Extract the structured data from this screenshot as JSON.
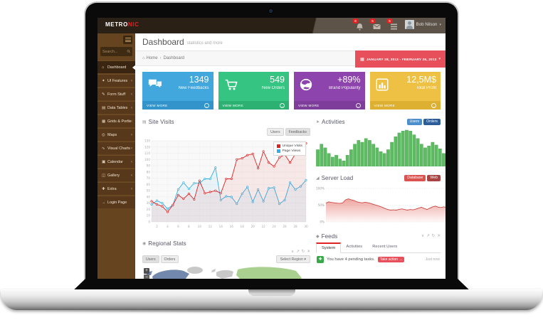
{
  "brand": {
    "logo_primary": "METRO",
    "logo_accent": "NIC"
  },
  "header": {
    "notifications": [
      {
        "icon": "bell-icon",
        "badge": "6"
      },
      {
        "icon": "envelope-icon",
        "badge": "5"
      },
      {
        "icon": "tasks-icon",
        "badge": "5"
      }
    ],
    "user": {
      "name": "Bob Nilson"
    }
  },
  "sidebar": {
    "search_placeholder": "Search...",
    "items": [
      {
        "label": "Dashboard",
        "icon": "home-icon",
        "glyph": "home",
        "active": true,
        "arrow": false
      },
      {
        "label": "UI Features",
        "icon": "star-icon",
        "glyph": "star",
        "active": false,
        "arrow": true
      },
      {
        "label": "Form Stuff",
        "icon": "pencil-icon",
        "glyph": "pencil",
        "active": false,
        "arrow": true
      },
      {
        "label": "Data Tables",
        "icon": "table-icon",
        "glyph": "table",
        "active": false,
        "arrow": true
      },
      {
        "label": "Grids & Portlets",
        "icon": "grid-icon",
        "glyph": "grid",
        "active": false,
        "arrow": true
      },
      {
        "label": "Maps",
        "icon": "map-pin-icon",
        "glyph": "pin",
        "active": false,
        "arrow": true
      },
      {
        "label": "Visual Charts",
        "icon": "chart-icon",
        "glyph": "wave",
        "active": false,
        "arrow": true
      },
      {
        "label": "Calendar",
        "icon": "calendar-icon",
        "glyph": "calendar",
        "active": false,
        "arrow": true
      },
      {
        "label": "Gallery",
        "icon": "gallery-icon",
        "glyph": "gallery",
        "active": false,
        "arrow": true
      },
      {
        "label": "Extra",
        "icon": "plus-icon",
        "glyph": "plus",
        "active": false,
        "arrow": true
      },
      {
        "label": "Login Page",
        "icon": "login-icon",
        "glyph": "arrow-right",
        "active": false,
        "arrow": false
      }
    ]
  },
  "page": {
    "title": "Dashboard",
    "subtitle": "statistics and more"
  },
  "breadcrumb": {
    "home": "Home",
    "current": "Dashboard"
  },
  "daterange": {
    "label": "JANUARY 28, 2013 - FEBRUARY 26, 2013",
    "color": "#e7505a"
  },
  "tiles": [
    {
      "value": "1349",
      "label": "New Feedbacks",
      "footer": "VIEW MORE",
      "color": "#41a7dd",
      "footer_color": "#3294cb",
      "icon": "comments-icon"
    },
    {
      "value": "549",
      "label": "New Orders",
      "footer": "VIEW MORE",
      "color": "#35c481",
      "footer_color": "#2db173",
      "icon": "cart-icon"
    },
    {
      "value": "+89%",
      "label": "Brand Popularity",
      "footer": "VIEW MORE",
      "color": "#8e44ad",
      "footer_color": "#7e3d9b",
      "icon": "globe-icon"
    },
    {
      "value": "12,5M$",
      "label": "Total Profit",
      "footer": "VIEW MORE",
      "color": "#eec144",
      "footer_color": "#ddb032",
      "icon": "bar-chart-icon"
    }
  ],
  "charts": {
    "site_visits": {
      "title": "Site Visits",
      "buttons": [
        "Users",
        "Feedbacks"
      ],
      "type": "line",
      "ylim": [
        0,
        130
      ],
      "y_ticks": [
        0,
        10,
        20,
        30,
        40,
        50,
        60,
        70,
        80,
        90,
        100,
        110,
        120,
        130
      ],
      "x_ticks": [
        2,
        4,
        6,
        8,
        10,
        12,
        14,
        16,
        18,
        20,
        22,
        24,
        26,
        28,
        30
      ],
      "x_count": 30,
      "series": [
        {
          "name": "Page Views",
          "color": "#35aee4",
          "values": [
            28,
            34,
            30,
            21,
            27,
            52,
            63,
            53,
            62,
            62,
            69,
            69,
            87,
            35,
            41,
            40,
            29,
            45,
            56,
            32,
            52,
            33,
            54,
            55,
            29,
            35,
            63,
            52,
            57,
            67
          ]
        },
        {
          "name": "Unique Visits",
          "color": "#e02222",
          "values": [
            33,
            28,
            25,
            16,
            27,
            43,
            37,
            45,
            36,
            66,
            46,
            48,
            50,
            46,
            69,
            69,
            100,
            102,
            107,
            109,
            86,
            113,
            95,
            89,
            103,
            108,
            95,
            109,
            118,
            126
          ]
        }
      ],
      "legend_order": [
        "Unique Visits",
        "Page Views"
      ]
    },
    "activities": {
      "title": "Activities",
      "buttons": [
        {
          "label": "Users",
          "color": "#4d8fcc"
        },
        {
          "label": "Orders",
          "color": "#2c5d98"
        }
      ],
      "type": "bar",
      "bar_color": "#5fbb63",
      "bar_stroke": "#46a54a",
      "values": [
        18,
        24,
        20,
        14,
        10,
        12,
        8,
        6,
        12,
        18,
        24,
        28,
        26,
        30,
        28,
        24,
        20,
        16,
        14,
        18,
        26,
        32,
        36,
        38,
        39,
        38,
        34,
        30,
        24,
        20,
        22,
        26,
        23,
        19,
        14,
        10,
        7,
        6,
        10,
        16,
        22,
        28,
        31,
        27
      ]
    },
    "server_load": {
      "title": "Server Load",
      "buttons": [
        {
          "label": "Database",
          "color": "#d9534f"
        },
        {
          "label": "Web",
          "color": "#a94442"
        }
      ],
      "type": "area",
      "line_color": "#cb4a42",
      "fill_color": "#e05a52",
      "y_ticks": [
        {
          "v": 100,
          "label": "100%"
        },
        {
          "v": 50,
          "label": "50%"
        },
        {
          "v": 0,
          "label": "0%"
        }
      ],
      "values": [
        56,
        60,
        58,
        57,
        56,
        55,
        57,
        66,
        69,
        66,
        64,
        60,
        58,
        57,
        59,
        57,
        55,
        52,
        50,
        47,
        44,
        40,
        37,
        35,
        36,
        35,
        37,
        39,
        37,
        35,
        37,
        36,
        38,
        41,
        44,
        40,
        37,
        41,
        45,
        47,
        44,
        43,
        45,
        43,
        41,
        45,
        49,
        51,
        49,
        47,
        49,
        45,
        43,
        39,
        34
      ]
    },
    "regional_stats": {
      "title": "Regional Stats",
      "buttons": [
        "Users",
        "Orders"
      ],
      "select_label": "Select Region",
      "map_colors": {
        "north_america": "#7388ad",
        "greenland": "#c8c8c8",
        "europe": "#c8c8c8",
        "asia": "#a9d08f",
        "africa": "#a9d08f",
        "south_america": "#a9d08f"
      },
      "zoom_in": "+",
      "zoom_out": "−"
    },
    "feeds": {
      "title": "Feeds",
      "tabs": [
        "System",
        "Activities",
        "Recent Users"
      ],
      "active_tab": "System",
      "items": [
        {
          "text": "You have 4 pending tasks.",
          "action": "Take action",
          "action_color": "#e7505a",
          "time": "Just now",
          "icon": "task-plus-icon"
        }
      ]
    }
  },
  "ui": {
    "portlet_tools": [
      {
        "name": "collapse",
        "glyph": "∨"
      },
      {
        "name": "fullscreen",
        "glyph": "↗"
      },
      {
        "name": "reload",
        "glyph": "↻"
      },
      {
        "name": "remove",
        "glyph": "✕"
      }
    ]
  },
  "icons": {
    "home": "⌂",
    "star": "✦",
    "pencil": "✎",
    "table": "▤",
    "grid": "▦",
    "pin": "◎",
    "wave": "∿",
    "calendar": "▣",
    "gallery": "◫",
    "plus": "✚",
    "arrow-right": "→",
    "caret-down": "▾",
    "chevron-left": "‹",
    "crumb-sep": "›",
    "calendar-sm": "▦",
    "panel-bars": "▤",
    "panel-megaphone": "➤",
    "panel-area": "◢",
    "panel-globe": "◉",
    "panel-feed": "◆",
    "circle-arrow": "→",
    "task-plus": "✚",
    "action-arrow": "→"
  }
}
